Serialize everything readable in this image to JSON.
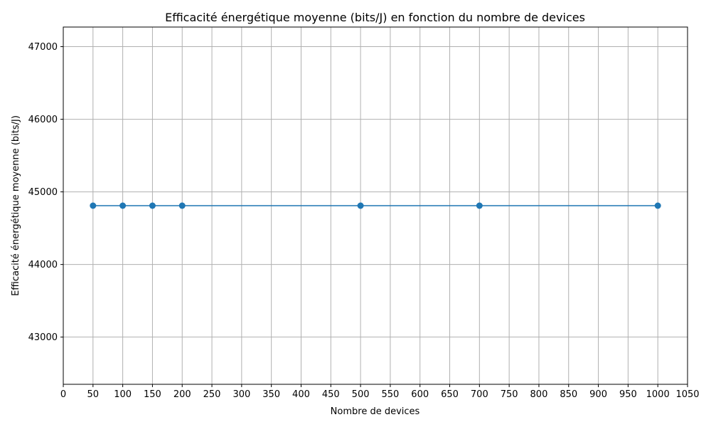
{
  "chart_data": {
    "type": "line",
    "title": "Efficacité énergétique moyenne (bits/J) en fonction du nombre de devices",
    "xlabel": "Nombre de devices",
    "ylabel": "Efficacité énergétique moyenne (bits/J)",
    "xlim": [
      0,
      1050
    ],
    "ylim": [
      42350,
      47270
    ],
    "xticks": [
      0,
      50,
      100,
      150,
      200,
      250,
      300,
      350,
      400,
      450,
      500,
      550,
      600,
      650,
      700,
      750,
      800,
      850,
      900,
      950,
      1000,
      1050
    ],
    "yticks": [
      43000,
      44000,
      45000,
      46000,
      47000
    ],
    "grid": true,
    "series": [
      {
        "x": [
          50,
          100,
          150,
          200,
          500,
          700,
          1000
        ],
        "y": [
          44810,
          44810,
          44810,
          44810,
          44810,
          44810,
          44810
        ],
        "color": "#1f77b4",
        "marker": "circle"
      }
    ]
  }
}
